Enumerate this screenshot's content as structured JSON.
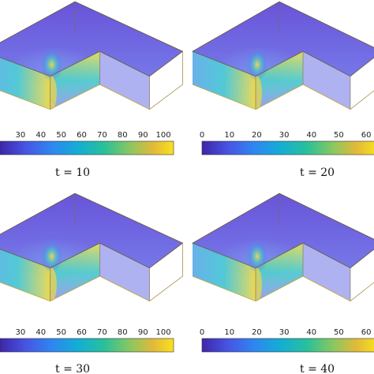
{
  "figure": {
    "panels": [
      {
        "id": "p1",
        "time_label": "t = 10",
        "colorbar": {
          "ticks": [
            "30",
            "40",
            "50",
            "60",
            "70",
            "80",
            "90",
            "100"
          ],
          "tick_values": [
            30,
            40,
            50,
            60,
            70,
            80,
            90,
            100
          ],
          "min": 20,
          "max": 105
        }
      },
      {
        "id": "p2",
        "time_label": "t = 20",
        "colorbar": {
          "ticks": [
            "0",
            "10",
            "20",
            "30",
            "40",
            "50",
            "60"
          ],
          "tick_values": [
            0,
            10,
            20,
            30,
            40,
            50,
            60
          ],
          "min": 0,
          "max": 64
        }
      },
      {
        "id": "p3",
        "time_label": "t = 30",
        "colorbar": {
          "ticks": [
            "30",
            "40",
            "50",
            "60",
            "70",
            "80",
            "90",
            "100"
          ],
          "tick_values": [
            30,
            40,
            50,
            60,
            70,
            80,
            90,
            100
          ],
          "min": 20,
          "max": 105
        }
      },
      {
        "id": "p4",
        "time_label": "t = 40",
        "colorbar": {
          "ticks": [
            "0",
            "10",
            "20",
            "30",
            "40",
            "50",
            "60"
          ],
          "tick_values": [
            0,
            10,
            20,
            30,
            40,
            50,
            60
          ],
          "min": 0,
          "max": 64
        }
      }
    ],
    "colormap": [
      "#3e26a8",
      "#4755e4",
      "#2e87f0",
      "#13aed4",
      "#29c09a",
      "#8bc760",
      "#e1b93a",
      "#f9e11e"
    ]
  }
}
